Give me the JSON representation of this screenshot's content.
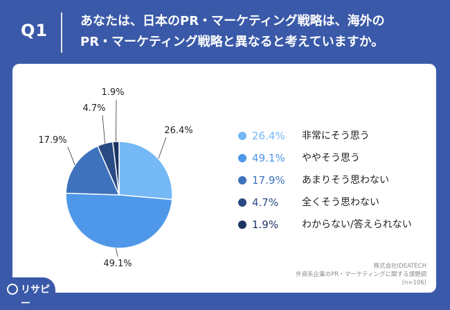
{
  "header": {
    "q_label": "Q1",
    "question_line1": "あなたは、日本のPR・マーケティング戦略は、海外の",
    "question_line2": "PR・マーケティング戦略と異なると考えていますか。"
  },
  "chart_data": {
    "type": "pie",
    "categories": [
      "非常にそう思う",
      "ややそう思う",
      "あまりそう思わない",
      "全くそう思わない",
      "わからない/答えられない"
    ],
    "values": [
      26.4,
      49.1,
      17.9,
      4.7,
      1.9
    ],
    "labels": [
      "26.4%",
      "49.1%",
      "17.9%",
      "4.7%",
      "1.9%"
    ],
    "colors": [
      "#74b8f5",
      "#4f97e8",
      "#3e72bc",
      "#294a82",
      "#1b3360"
    ],
    "start_angle": "12 o'clock",
    "direction": "clockwise",
    "legend_placement": "right"
  },
  "source": {
    "line1": "株式会社IDEATECH",
    "line2": "外資系企業のPR・マーケティングに関する課題調",
    "line3": "(n=106)"
  },
  "brand": {
    "name": "リサピー",
    "icon": "lens-icon"
  }
}
